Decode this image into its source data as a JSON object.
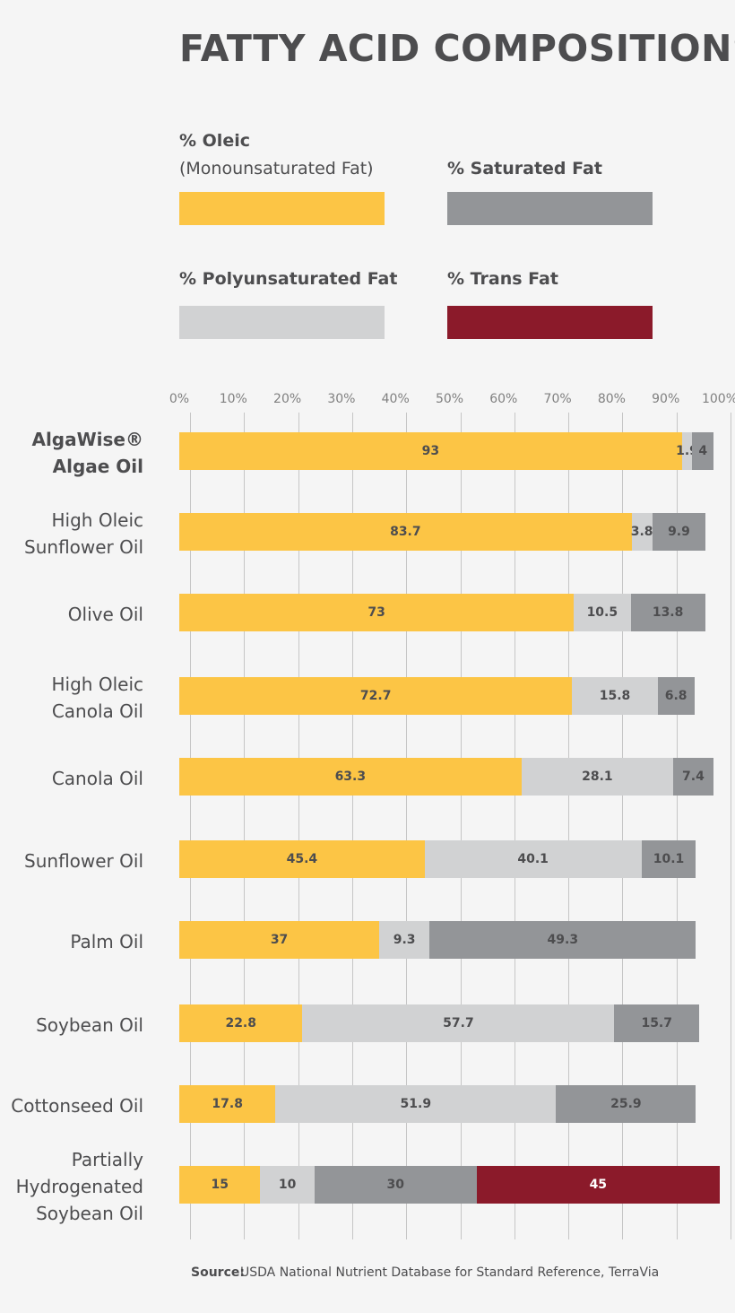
{
  "chart_data": {
    "type": "stacked_bar_horizontal",
    "title": "FATTY ACID COMPOSITIONS",
    "categories": [
      "AlgaWise®\nAlgae Oil",
      "High Oleic\nSunflower Oil",
      "Olive Oil",
      "High Oleic\nCanola Oil",
      "Canola Oil",
      "Sunflower Oil",
      "Palm Oil",
      "Soybean Oil",
      "Cottonseed Oil",
      "Partially\nHydrogenated\nSoybean Oil"
    ],
    "series": [
      {
        "name": "% Oleic",
        "name_note": "(Monounsaturated Fat)",
        "color": "#fcc545",
        "values": [
          93,
          83.7,
          73,
          72.7,
          63.3,
          45.4,
          37,
          22.8,
          17.8,
          15
        ]
      },
      {
        "name": "% Polyunsaturated Fat",
        "color": "#d1d2d3",
        "values": [
          1.9,
          3.8,
          10.5,
          15.8,
          28.1,
          40.1,
          9.3,
          57.7,
          51.9,
          10
        ]
      },
      {
        "name": "% Saturated Fat",
        "color": "#939598",
        "values": [
          4,
          9.9,
          13.8,
          6.8,
          7.4,
          10.1,
          49.3,
          15.7,
          25.9,
          30
        ]
      },
      {
        "name": "% Trans Fat",
        "color": "#8b1a2a",
        "values": [
          null,
          null,
          null,
          null,
          null,
          null,
          null,
          null,
          null,
          45
        ]
      }
    ],
    "xlim": [
      0,
      100
    ],
    "xticks": [
      {
        "value": 0,
        "label": "0%"
      },
      {
        "value": 10,
        "label": "10%"
      },
      {
        "value": 20,
        "label": "20%"
      },
      {
        "value": 30,
        "label": "30%"
      },
      {
        "value": 40,
        "label": "40%"
      },
      {
        "value": 50,
        "label": "50%"
      },
      {
        "value": 60,
        "label": "60%"
      },
      {
        "value": 70,
        "label": "70%"
      },
      {
        "value": 80,
        "label": "80%"
      },
      {
        "value": 90,
        "label": "90%"
      },
      {
        "value": 100,
        "label": "100%"
      }
    ],
    "grid": true,
    "source_label": "Source:",
    "source_text": "USDA National Nutrient Database for Standard Reference, TerraVia"
  }
}
